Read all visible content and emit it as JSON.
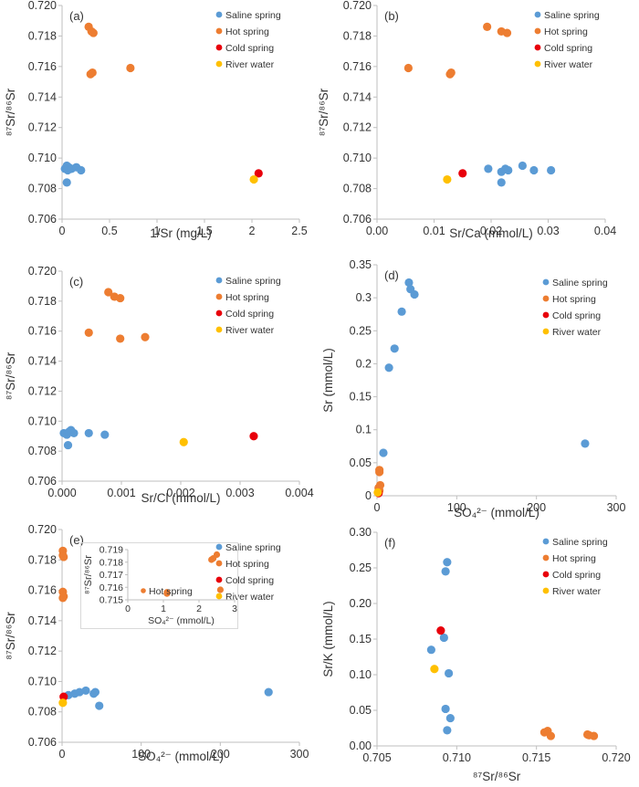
{
  "colors": {
    "saline": "#5B9BD5",
    "hot": "#ED7D31",
    "cold": "#E8000B",
    "river": "#FFC000"
  },
  "legend_labels": [
    "Saline spring",
    "Hot spring",
    "Cold spring",
    "River water"
  ],
  "chart_data": [
    {
      "type": "scatter",
      "panel_label": "(a)",
      "xlabel": "1/Sr (mg/L)",
      "ylabel": "⁸⁷Sr/⁸⁶Sr",
      "xlim": [
        0,
        2.5
      ],
      "ylim": [
        0.706,
        0.72
      ],
      "xticks": [
        "0",
        "0.5",
        "1",
        "1.5",
        "2",
        "2.5"
      ],
      "yticks": [
        "0.706",
        "0.708",
        "0.710",
        "0.712",
        "0.714",
        "0.716",
        "0.718",
        "0.720"
      ],
      "legend_placement": "top-right",
      "series": [
        {
          "name": "Saline spring",
          "color_key": "saline",
          "points": [
            [
              0.03,
              0.7093
            ],
            [
              0.05,
              0.7095
            ],
            [
              0.06,
              0.7092
            ],
            [
              0.07,
              0.7094
            ],
            [
              0.1,
              0.7093
            ],
            [
              0.05,
              0.7084
            ],
            [
              0.15,
              0.7094
            ],
            [
              0.2,
              0.7092
            ]
          ]
        },
        {
          "name": "Hot spring",
          "color_key": "hot",
          "points": [
            [
              0.28,
              0.7186
            ],
            [
              0.31,
              0.7183
            ],
            [
              0.33,
              0.7182
            ],
            [
              0.3,
              0.7155
            ],
            [
              0.32,
              0.7156
            ],
            [
              0.72,
              0.7159
            ]
          ]
        },
        {
          "name": "Cold spring",
          "color_key": "cold",
          "points": [
            [
              2.07,
              0.709
            ]
          ]
        },
        {
          "name": "River water",
          "color_key": "river",
          "points": [
            [
              2.02,
              0.7086
            ]
          ]
        }
      ]
    },
    {
      "type": "scatter",
      "panel_label": "(b)",
      "xlabel": "Sr/Ca (mmol/L)",
      "ylabel": "⁸⁷Sr/⁸⁶Sr",
      "xlim": [
        0,
        0.04
      ],
      "ylim": [
        0.706,
        0.72
      ],
      "xticks": [
        "0.00",
        "0.01",
        "0.02",
        "0.03",
        "0.04"
      ],
      "yticks": [
        "0.706",
        "0.708",
        "0.710",
        "0.712",
        "0.714",
        "0.716",
        "0.718",
        "0.720"
      ],
      "legend_placement": "top-right",
      "series": [
        {
          "name": "Saline spring",
          "color_key": "saline",
          "points": [
            [
              0.0195,
              0.7093
            ],
            [
              0.0218,
              0.7091
            ],
            [
              0.0225,
              0.7093
            ],
            [
              0.023,
              0.7092
            ],
            [
              0.0255,
              0.7095
            ],
            [
              0.0275,
              0.7092
            ],
            [
              0.0305,
              0.7092
            ],
            [
              0.0218,
              0.7084
            ]
          ]
        },
        {
          "name": "Hot spring",
          "color_key": "hot",
          "points": [
            [
              0.0193,
              0.7186
            ],
            [
              0.0218,
              0.7183
            ],
            [
              0.0228,
              0.7182
            ],
            [
              0.0055,
              0.7159
            ],
            [
              0.0128,
              0.7155
            ],
            [
              0.013,
              0.7156
            ]
          ]
        },
        {
          "name": "Cold spring",
          "color_key": "cold",
          "points": [
            [
              0.015,
              0.709
            ]
          ]
        },
        {
          "name": "River water",
          "color_key": "river",
          "points": [
            [
              0.0123,
              0.7086
            ]
          ]
        }
      ]
    },
    {
      "type": "scatter",
      "panel_label": "(c)",
      "xlabel": "Sr/Cl (mmol/L)",
      "ylabel": "⁸⁷Sr/⁸⁶Sr",
      "xlim": [
        0,
        0.004
      ],
      "ylim": [
        0.706,
        0.72
      ],
      "xticks": [
        "0.000",
        "0.001",
        "0.002",
        "0.003",
        "0.004"
      ],
      "yticks": [
        "0.706",
        "0.708",
        "0.710",
        "0.712",
        "0.714",
        "0.716",
        "0.718",
        "0.720"
      ],
      "legend_placement": "top-right",
      "series": [
        {
          "name": "Saline spring",
          "color_key": "saline",
          "points": [
            [
              3e-05,
              0.7092
            ],
            [
              8e-05,
              0.7091
            ],
            [
              0.00012,
              0.7093
            ],
            [
              0.00015,
              0.7094
            ],
            [
              0.0002,
              0.7092
            ],
            [
              0.00045,
              0.7092
            ],
            [
              0.00072,
              0.7091
            ],
            [
              0.0001,
              0.7084
            ]
          ]
        },
        {
          "name": "Hot spring",
          "color_key": "hot",
          "points": [
            [
              0.00078,
              0.7186
            ],
            [
              0.00088,
              0.7183
            ],
            [
              0.00098,
              0.7182
            ],
            [
              0.00045,
              0.7159
            ],
            [
              0.00098,
              0.7155
            ],
            [
              0.0014,
              0.7156
            ]
          ]
        },
        {
          "name": "Cold spring",
          "color_key": "cold",
          "points": [
            [
              0.00323,
              0.709
            ]
          ]
        },
        {
          "name": "River water",
          "color_key": "river",
          "points": [
            [
              0.00205,
              0.7086
            ]
          ]
        }
      ]
    },
    {
      "type": "scatter",
      "panel_label": "(d)",
      "xlabel": "SO₄²⁻ (mmol/L)",
      "ylabel": "Sr (mmol/L)",
      "xlim": [
        0,
        300
      ],
      "ylim": [
        0,
        0.35
      ],
      "xticks": [
        "0",
        "100",
        "200",
        "300"
      ],
      "yticks": [
        "0",
        "0.05",
        "0.1",
        "0.15",
        "0.2",
        "0.25",
        "0.3",
        "0.35"
      ],
      "legend_placement": "top-right",
      "series": [
        {
          "name": "Saline spring",
          "color_key": "saline",
          "points": [
            [
              40,
              0.323
            ],
            [
              42,
              0.313
            ],
            [
              47,
              0.305
            ],
            [
              31,
              0.279
            ],
            [
              22,
              0.223
            ],
            [
              15,
              0.194
            ],
            [
              8,
              0.065
            ],
            [
              261,
              0.079
            ]
          ]
        },
        {
          "name": "Hot spring",
          "color_key": "hot",
          "points": [
            [
              3,
              0.039
            ],
            [
              3,
              0.036
            ],
            [
              4,
              0.016
            ],
            [
              2,
              0.012
            ],
            [
              3,
              0.008
            ],
            [
              2,
              0.006
            ]
          ]
        },
        {
          "name": "Cold spring",
          "color_key": "cold",
          "points": [
            [
              2,
              0.004
            ]
          ]
        },
        {
          "name": "River water",
          "color_key": "river",
          "points": [
            [
              1,
              0.005
            ]
          ]
        }
      ]
    },
    {
      "type": "scatter",
      "panel_label": "(e)",
      "xlabel": "SO₄²⁻ (mmol/L)",
      "ylabel": "⁸⁷Sr/⁸⁶Sr",
      "xlim": [
        0,
        300
      ],
      "ylim": [
        0.706,
        0.72
      ],
      "xticks": [
        "0",
        "100",
        "200",
        "300"
      ],
      "yticks": [
        "0.706",
        "0.708",
        "0.710",
        "0.712",
        "0.714",
        "0.716",
        "0.718",
        "0.720"
      ],
      "legend_placement": "top-right",
      "series": [
        {
          "name": "Saline spring",
          "color_key": "saline",
          "points": [
            [
              8,
              0.7091
            ],
            [
              16,
              0.7092
            ],
            [
              22,
              0.7093
            ],
            [
              30,
              0.7094
            ],
            [
              40,
              0.7092
            ],
            [
              42,
              0.7093
            ],
            [
              47,
              0.7084
            ],
            [
              261,
              0.7093
            ]
          ]
        },
        {
          "name": "Hot spring",
          "color_key": "hot",
          "points": [
            [
              1,
              0.7186
            ],
            [
              1,
              0.7183
            ],
            [
              2,
              0.7182
            ],
            [
              1,
              0.7159
            ],
            [
              2,
              0.7156
            ],
            [
              1,
              0.7155
            ]
          ]
        },
        {
          "name": "Cold spring",
          "color_key": "cold",
          "points": [
            [
              2,
              0.709
            ]
          ]
        },
        {
          "name": "River water",
          "color_key": "river",
          "points": [
            [
              1,
              0.7086
            ]
          ]
        }
      ],
      "inset": {
        "xlabel": "SO₄²⁻ (mmol/L)",
        "ylabel": "⁸⁷Sr/⁸⁶Sr",
        "xlim": [
          0,
          3
        ],
        "ylim": [
          0.715,
          0.719
        ],
        "xticks": [
          "0",
          "1",
          "2",
          "3"
        ],
        "yticks": [
          "0.715",
          "0.716",
          "0.717",
          "0.718",
          "0.719"
        ],
        "legend_label": "Hot spring",
        "points": [
          [
            1.1,
            0.7156
          ],
          [
            1.1,
            0.7155
          ],
          [
            2.35,
            0.7182
          ],
          [
            2.4,
            0.7183
          ],
          [
            2.5,
            0.7186
          ],
          [
            2.6,
            0.7158
          ]
        ]
      }
    },
    {
      "type": "scatter",
      "panel_label": "(f)",
      "xlabel": "⁸⁷Sr/⁸⁶Sr",
      "ylabel": "Sr/K (mmol/L)",
      "xlim": [
        0.705,
        0.72
      ],
      "ylim": [
        0,
        0.3
      ],
      "xticks": [
        "0.705",
        "0.710",
        "0.715",
        "0.720"
      ],
      "yticks": [
        "0.00",
        "0.05",
        "0.10",
        "0.15",
        "0.20",
        "0.25",
        "0.30"
      ],
      "legend_placement": "top-right",
      "series": [
        {
          "name": "Saline spring",
          "color_key": "saline",
          "points": [
            [
              0.7094,
              0.258
            ],
            [
              0.7093,
              0.245
            ],
            [
              0.7092,
              0.152
            ],
            [
              0.7084,
              0.135
            ],
            [
              0.7095,
              0.102
            ],
            [
              0.7093,
              0.052
            ],
            [
              0.7096,
              0.039
            ],
            [
              0.7094,
              0.022
            ]
          ]
        },
        {
          "name": "Hot spring",
          "color_key": "hot",
          "points": [
            [
              0.7157,
              0.021
            ],
            [
              0.7159,
              0.014
            ],
            [
              0.7155,
              0.019
            ],
            [
              0.7182,
              0.016
            ],
            [
              0.7183,
              0.015
            ],
            [
              0.7186,
              0.014
            ]
          ]
        },
        {
          "name": "Cold spring",
          "color_key": "cold",
          "points": [
            [
              0.709,
              0.162
            ]
          ]
        },
        {
          "name": "River water",
          "color_key": "river",
          "points": [
            [
              0.7086,
              0.108
            ]
          ]
        }
      ]
    }
  ]
}
